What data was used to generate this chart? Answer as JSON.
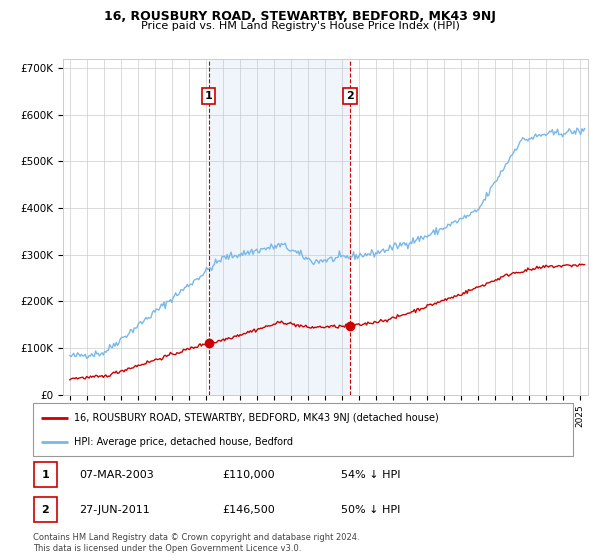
{
  "title": "16, ROUSBURY ROAD, STEWARTBY, BEDFORD, MK43 9NJ",
  "subtitle": "Price paid vs. HM Land Registry's House Price Index (HPI)",
  "ylabel_ticks": [
    "£0",
    "£100K",
    "£200K",
    "£300K",
    "£400K",
    "£500K",
    "£600K",
    "£700K"
  ],
  "ytick_vals": [
    0,
    100000,
    200000,
    300000,
    400000,
    500000,
    600000,
    700000
  ],
  "ylim": [
    0,
    720000
  ],
  "xlim_start": 1994.6,
  "xlim_end": 2025.5,
  "hpi_color": "#7ab8e8",
  "price_color": "#cc0000",
  "transaction1_x": 2003.18,
  "transaction1_y": 110000,
  "transaction2_x": 2011.49,
  "transaction2_y": 146500,
  "legend_house_label": "16, ROUSBURY ROAD, STEWARTBY, BEDFORD, MK43 9NJ (detached house)",
  "legend_hpi_label": "HPI: Average price, detached house, Bedford",
  "table_row1": [
    "1",
    "07-MAR-2003",
    "£110,000",
    "54% ↓ HPI"
  ],
  "table_row2": [
    "2",
    "27-JUN-2011",
    "£146,500",
    "50% ↓ HPI"
  ],
  "footer": "Contains HM Land Registry data © Crown copyright and database right 2024.\nThis data is licensed under the Open Government Licence v3.0.",
  "background_color": "#ffffff",
  "grid_color": "#cccccc",
  "shade_color": "#ddeeff"
}
